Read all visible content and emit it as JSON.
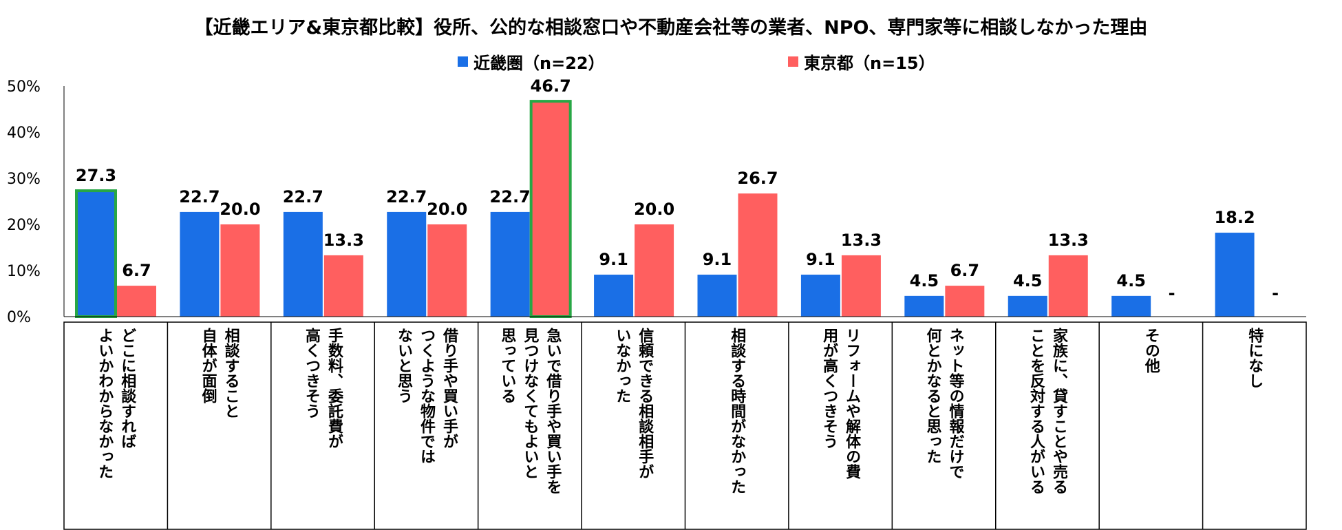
{
  "chart_data": {
    "type": "bar",
    "title": "【近畿エリア&東京都比較】役所、公的な相談窓口や不動産会社等の業者、NPO、専門家等に相談しなかった理由",
    "legend_position": "top",
    "y_ticks": [
      "50%",
      "40%",
      "30%",
      "20%",
      "10%",
      "0%"
    ],
    "ylim": [
      0,
      50
    ],
    "grid": false,
    "categories": [
      "どこに相談すれば\nよいかわからなかった",
      "相談すること\n自体が面倒",
      "手数料、委託費が\n高くつきそう",
      "借り手や買い手が\nつくような物件では\nないと思う",
      "急いで借り手や買い手を\n見つけなくてもよいと\n思っている",
      "信頼できる相談相手が\nいなかった",
      "相談する時間がなかった",
      "リフォームや解体の費\n用が高くつきそう",
      "ネット等の情報だけで\n何とかなると思った",
      "家族に、貸すことや売る\nことを反対する人がいる",
      "その他",
      "特になし"
    ],
    "series": [
      {
        "name": "近畿圏（n=22）",
        "color": "#1A6FE6",
        "values": [
          27.3,
          22.7,
          22.7,
          22.7,
          22.7,
          9.1,
          9.1,
          9.1,
          4.5,
          4.5,
          4.5,
          18.2
        ],
        "labels": [
          "27.3",
          "22.7",
          "22.7",
          "22.7",
          "22.7",
          "9.1",
          "9.1",
          "9.1",
          "4.5",
          "4.5",
          "4.5",
          "18.2"
        ],
        "highlight": [
          true,
          false,
          false,
          false,
          false,
          false,
          false,
          false,
          false,
          false,
          false,
          false
        ]
      },
      {
        "name": "東京都（n=15）",
        "color": "#FF5F5F",
        "values": [
          6.7,
          20.0,
          13.3,
          20.0,
          46.7,
          20.0,
          26.7,
          13.3,
          6.7,
          13.3,
          null,
          null
        ],
        "labels": [
          "6.7",
          "20.0",
          "13.3",
          "20.0",
          "46.7",
          "20.0",
          "26.7",
          "13.3",
          "6.7",
          "13.3",
          "-",
          "-"
        ],
        "highlight": [
          false,
          false,
          false,
          false,
          true,
          false,
          false,
          false,
          false,
          false,
          false,
          false
        ]
      }
    ],
    "highlight_color": "#28A745"
  }
}
